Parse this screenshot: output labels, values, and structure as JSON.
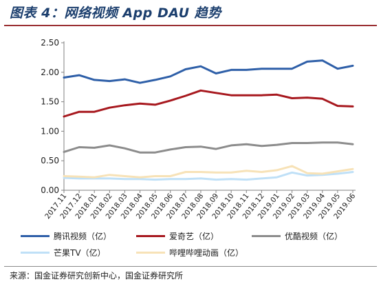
{
  "header": {
    "title": "图表 4：网络视频 App DAU 趋势"
  },
  "footer": {
    "source": "来源：国金证券研究创新中心，国金证券研究所"
  },
  "chart_data": {
    "type": "line",
    "title": "图表 4：网络视频 App DAU 趋势",
    "xlabel": "",
    "ylabel": "",
    "ylim": [
      0,
      2.5
    ],
    "yticks": [
      0.0,
      0.5,
      1.0,
      1.5,
      2.0,
      2.5
    ],
    "ytick_labels": [
      "0.00",
      "0.50",
      "1.00",
      "1.50",
      "2.00",
      "2.50"
    ],
    "grid": false,
    "legend": "bottom",
    "categories": [
      "2017.11",
      "2017.12",
      "2018.01",
      "2018.02",
      "2018.03",
      "2018.04",
      "2018.05",
      "2018.06",
      "2018.07",
      "2018.08",
      "2018.09",
      "2018.10",
      "2018.11",
      "2018.12",
      "2019.01",
      "2019.02",
      "2019.03",
      "2019.04",
      "2019.05",
      "2019.06"
    ],
    "series": [
      {
        "name": "腾讯视频（亿）",
        "color": "#2e5fa8",
        "values": [
          1.91,
          1.95,
          1.87,
          1.85,
          1.88,
          1.82,
          1.87,
          1.93,
          2.05,
          2.1,
          1.98,
          2.04,
          2.04,
          2.06,
          2.06,
          2.06,
          2.18,
          2.2,
          2.06,
          2.11
        ]
      },
      {
        "name": "爱奇艺（亿）",
        "color": "#a7181e",
        "values": [
          1.25,
          1.33,
          1.33,
          1.4,
          1.44,
          1.47,
          1.45,
          1.52,
          1.6,
          1.69,
          1.65,
          1.61,
          1.61,
          1.61,
          1.62,
          1.56,
          1.57,
          1.55,
          1.43,
          1.42
        ]
      },
      {
        "name": "优酷视频（亿）",
        "color": "#8c8c8c",
        "values": [
          0.65,
          0.73,
          0.72,
          0.76,
          0.71,
          0.64,
          0.64,
          0.69,
          0.73,
          0.74,
          0.7,
          0.76,
          0.78,
          0.75,
          0.77,
          0.8,
          0.8,
          0.81,
          0.81,
          0.78
        ]
      },
      {
        "name": "芒果TV（亿）",
        "color": "#bfe0f7",
        "values": [
          0.21,
          0.2,
          0.2,
          0.2,
          0.19,
          0.19,
          0.18,
          0.19,
          0.19,
          0.2,
          0.18,
          0.19,
          0.18,
          0.2,
          0.22,
          0.3,
          0.25,
          0.26,
          0.28,
          0.31
        ]
      },
      {
        "name": "哔哩哔哩动画（亿）",
        "color": "#f7e2b7",
        "values": [
          0.24,
          0.23,
          0.22,
          0.26,
          0.24,
          0.22,
          0.24,
          0.24,
          0.31,
          0.31,
          0.3,
          0.3,
          0.33,
          0.31,
          0.34,
          0.41,
          0.29,
          0.28,
          0.32,
          0.36
        ]
      }
    ]
  }
}
